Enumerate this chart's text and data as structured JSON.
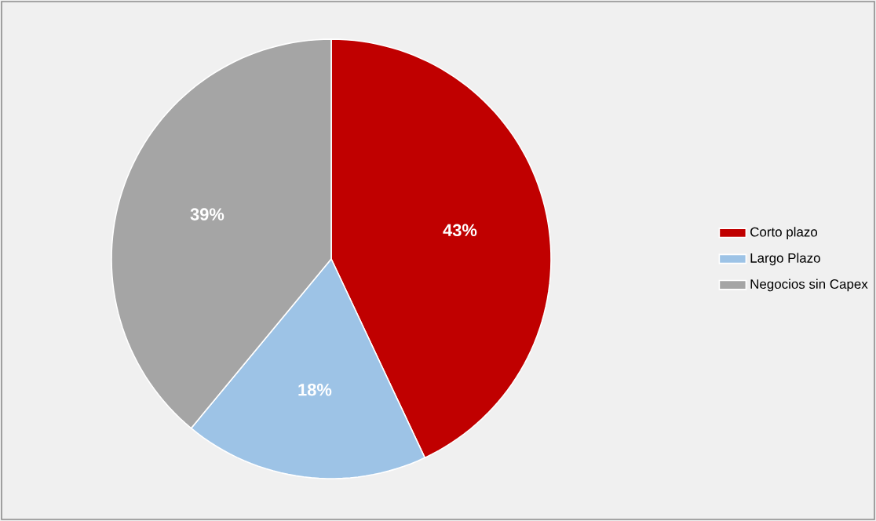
{
  "chart_data": {
    "type": "pie",
    "categories": [
      "Corto plazo",
      "Largo Plazo",
      "Negocios sin Capex"
    ],
    "values": [
      43,
      18,
      39
    ],
    "colors": [
      "#c00000",
      "#9dc3e6",
      "#a5a5a5"
    ],
    "value_labels": [
      "43%",
      "18%",
      "39%"
    ],
    "legend": "right"
  }
}
